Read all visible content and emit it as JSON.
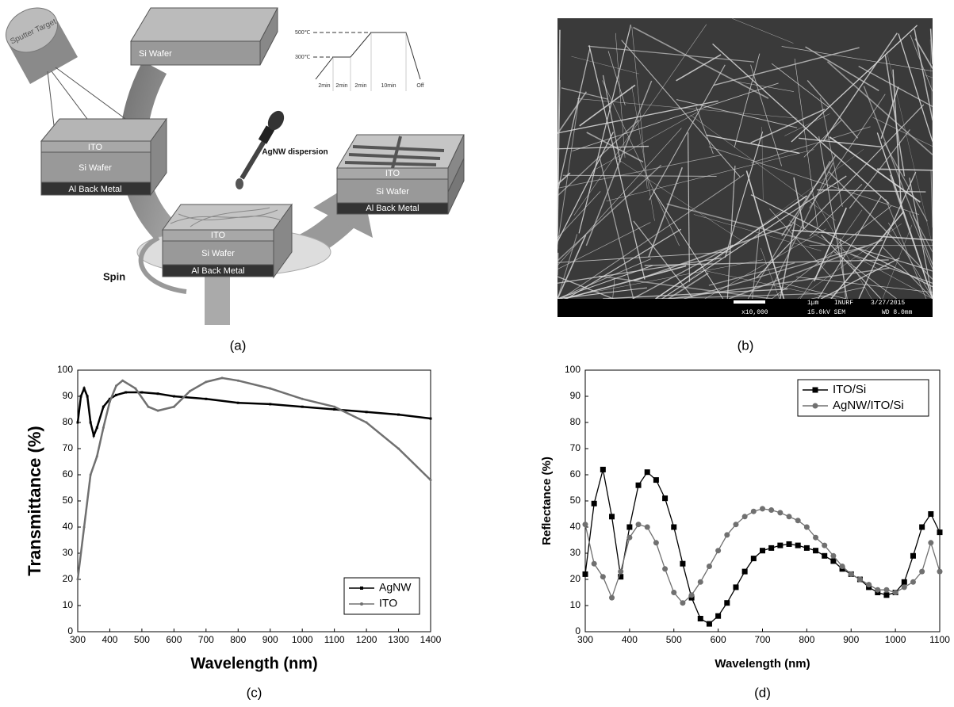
{
  "diagram": {
    "caption": "(a)",
    "sputter_target": "Sputter Target",
    "top_wafer": "Si Wafer",
    "left_stack": [
      "ITO",
      "Si Wafer",
      "Al Back Metal"
    ],
    "dispersion": "AgNW dispersion",
    "spin_stack": [
      "ITO",
      "Si Wafer",
      "Al Back Metal"
    ],
    "spin": "Spin",
    "right_stack": [
      "ITO",
      "Si Wafer",
      "Al Back Metal"
    ],
    "temp_high": "500℃",
    "temp_low": "300℃",
    "steps": [
      "2min",
      "2min",
      "2min",
      "10min",
      "Off"
    ]
  },
  "sem": {
    "caption": "(b)",
    "scale": "1μm",
    "lab": "INURF",
    "date": "3/27/2015",
    "magnification": "x10,000",
    "voltage": "15.0kV SEM",
    "wd": "WD 8.0mm"
  },
  "chart_data": [
    {
      "type": "line",
      "caption": "(c)",
      "xlabel": "Wavelength (nm)",
      "ylabel": "Transmittance (%)",
      "xlim": [
        300,
        1400
      ],
      "xticks": [
        300,
        400,
        500,
        600,
        700,
        800,
        900,
        1000,
        1100,
        1200,
        1300,
        1400
      ],
      "ylim": [
        0,
        100
      ],
      "yticks": [
        0,
        10,
        20,
        30,
        40,
        50,
        60,
        70,
        80,
        90,
        100
      ],
      "legend": "lower right",
      "series": [
        {
          "name": "AgNW",
          "color": "#000000",
          "marker": "square",
          "x": [
            300,
            310,
            320,
            330,
            340,
            350,
            360,
            380,
            400,
            420,
            450,
            500,
            550,
            600,
            700,
            800,
            900,
            1000,
            1100,
            1200,
            1300,
            1400
          ],
          "values": [
            80,
            90,
            93,
            90,
            80,
            75,
            78,
            86,
            89,
            90.5,
            91.5,
            91.5,
            91,
            90,
            89,
            87.5,
            87,
            86,
            85,
            84,
            83,
            81.5
          ]
        },
        {
          "name": "ITO",
          "color": "#707070",
          "marker": "circle",
          "x": [
            300,
            320,
            340,
            360,
            380,
            400,
            420,
            440,
            480,
            520,
            550,
            600,
            650,
            700,
            750,
            800,
            900,
            1000,
            1100,
            1200,
            1300,
            1400
          ],
          "values": [
            20,
            40,
            60,
            67,
            78,
            88,
            94,
            96,
            93,
            86,
            84.5,
            86,
            92,
            95.5,
            97,
            96,
            93,
            89,
            86,
            80,
            70,
            58
          ]
        }
      ]
    },
    {
      "type": "line",
      "caption": "(d)",
      "xlabel": "Wavelength (nm)",
      "ylabel": "Reflectance (%)",
      "xlim": [
        300,
        1100
      ],
      "xticks": [
        300,
        400,
        500,
        600,
        700,
        800,
        900,
        1000,
        1100
      ],
      "ylim": [
        0,
        100
      ],
      "yticks": [
        0,
        10,
        20,
        30,
        40,
        50,
        60,
        70,
        80,
        90,
        100
      ],
      "legend": "upper right",
      "x": [
        300,
        320,
        340,
        360,
        380,
        400,
        420,
        440,
        460,
        480,
        500,
        520,
        540,
        560,
        580,
        600,
        620,
        640,
        660,
        680,
        700,
        720,
        740,
        760,
        780,
        800,
        820,
        840,
        860,
        880,
        900,
        920,
        940,
        960,
        980,
        1000,
        1020,
        1040,
        1060,
        1080,
        1100
      ],
      "series": [
        {
          "name": "ITO/Si",
          "color": "#000000",
          "marker": "square",
          "values": [
            22,
            49,
            62,
            44,
            21,
            40,
            56,
            61,
            58,
            51,
            40,
            26,
            13,
            5,
            3,
            6,
            11,
            17,
            23,
            28,
            31,
            32,
            33,
            33.5,
            33,
            32,
            31,
            29,
            27,
            24,
            22,
            20,
            17,
            15,
            14,
            15,
            19,
            29,
            40,
            45,
            38
          ]
        },
        {
          "name": "AgNW/ITO/Si",
          "color": "#707070",
          "marker": "circle",
          "values": [
            41,
            26,
            21,
            13,
            23,
            36,
            41,
            40,
            34,
            24,
            15,
            11,
            14,
            19,
            25,
            31,
            37,
            41,
            44,
            46,
            47,
            46.5,
            45.5,
            44,
            42.5,
            40,
            36,
            33,
            29,
            25,
            22,
            20,
            18,
            16,
            16,
            15,
            17,
            19,
            23,
            34,
            23
          ]
        }
      ]
    }
  ]
}
